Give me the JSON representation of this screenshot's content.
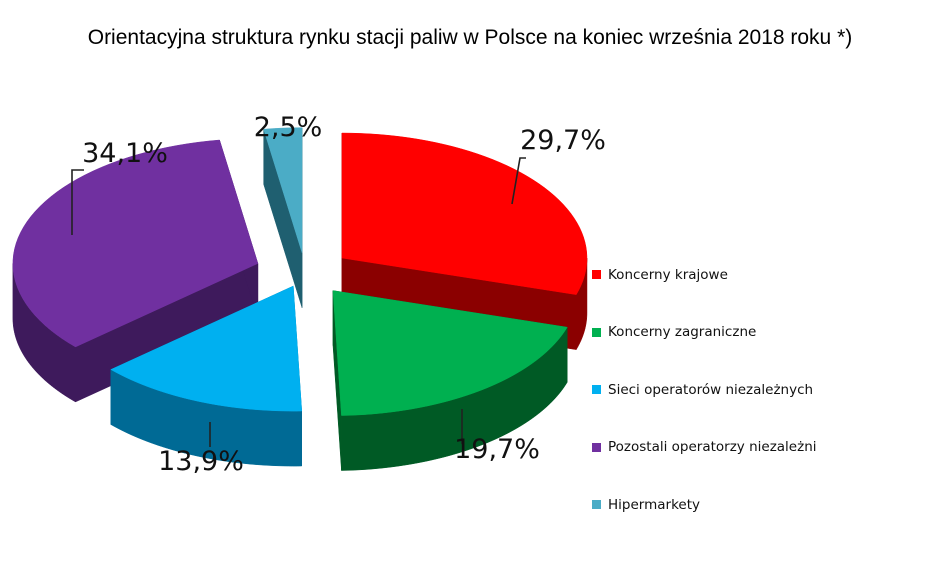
{
  "chart_data": {
    "type": "pie",
    "title": "Orientacyjna struktura rynku stacji paliw w Polsce na koniec września 2018 roku *)",
    "legend_position": "right",
    "exploded": true,
    "three_d": true,
    "slices": [
      {
        "name": "Koncerny krajowe",
        "value": 29.7,
        "label": "29,7%",
        "color": "#ff0000",
        "side_color": "#8b0000"
      },
      {
        "name": "Koncerny zagraniczne",
        "value": 19.7,
        "label": "19,7%",
        "color": "#00b050",
        "side_color": "#005a25"
      },
      {
        "name": "Sieci operatorów niezależnych",
        "value": 13.9,
        "label": "13,9%",
        "color": "#00b0f0",
        "side_color": "#006a95"
      },
      {
        "name": "Pozostali operatorzy niezależni",
        "value": 34.1,
        "label": "34,1%",
        "color": "#7030a0",
        "side_color": "#3e1a5c"
      },
      {
        "name": "Hipermarkety",
        "value": 2.5,
        "label": "2,5%",
        "color": "#4bacc6",
        "side_color": "#1f5f70"
      }
    ]
  }
}
